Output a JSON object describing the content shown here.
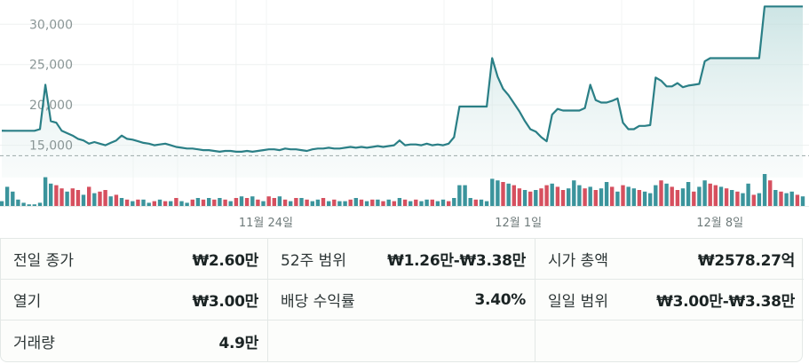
{
  "chart_data": {
    "type": "line",
    "y_ticks": [
      "30,000",
      "25,000",
      "20,000",
      "15,000"
    ],
    "y_tick_values": [
      30000,
      25000,
      20000,
      15000
    ],
    "x_ticks": [
      "11월 24일",
      "12월 1일",
      "12월 8일"
    ],
    "ylim": [
      11000,
      33000
    ],
    "line_color": "#2a7f86",
    "up_color": "#d6505f",
    "down_color": "#3b949c",
    "previous_close": 13700,
    "series": [
      {
        "values": [
          16800,
          16800,
          16800,
          16800,
          16800,
          16800,
          16800,
          17000,
          22500,
          18000,
          17800,
          16800,
          16500,
          16200,
          15800,
          15600,
          15200,
          15400,
          15200,
          15000,
          15300,
          15600,
          16200,
          15800,
          15700,
          15500,
          15300,
          15200,
          15000,
          15100,
          15200,
          15000,
          14800,
          14700,
          14600,
          14600,
          14500,
          14400,
          14400,
          14300,
          14200,
          14300,
          14300,
          14200,
          14200,
          14300,
          14200,
          14300,
          14400,
          14500,
          14500,
          14400,
          14600,
          14500,
          14500,
          14400,
          14300,
          14500,
          14600,
          14600,
          14700,
          14600,
          14600,
          14700,
          14800,
          14700,
          14800,
          14700,
          14800,
          14900,
          14800,
          14900,
          15000,
          15600,
          15000,
          15100,
          15100,
          15000,
          15200,
          15000,
          15100,
          15000,
          15200,
          16000,
          19800,
          19800,
          19800,
          19800,
          19800,
          19800,
          25800,
          23500,
          22000,
          21200,
          20200,
          19200,
          18000,
          17000,
          16700,
          16000,
          15500,
          18800,
          19500,
          19300,
          19300,
          19300,
          19300,
          19600,
          22500,
          20600,
          20300,
          20300,
          20500,
          20800,
          17800,
          17000,
          17000,
          17400,
          17400,
          17500,
          23400,
          23000,
          22300,
          22300,
          22700,
          22200,
          22400,
          22500,
          22600,
          25400,
          25800,
          25800,
          25800,
          25800,
          25800,
          25800,
          25800,
          25800,
          25800,
          25800,
          32200,
          32200,
          32200,
          32200,
          32200,
          32200,
          32200,
          32200
        ]
      }
    ],
    "volume": [
      3,
      12,
      9,
      4,
      2,
      1,
      1,
      2,
      18,
      14,
      13,
      11,
      9,
      11,
      10,
      7,
      12,
      8,
      9,
      10,
      6,
      7,
      5,
      4,
      3,
      4,
      4,
      2,
      3,
      4,
      3,
      3,
      5,
      3,
      2,
      4,
      5,
      4,
      5,
      4,
      5,
      4,
      3,
      5,
      6,
      5,
      6,
      4,
      3,
      6,
      5,
      6,
      4,
      3,
      5,
      5,
      4,
      3,
      4,
      5,
      3,
      4,
      3,
      3,
      4,
      5,
      4,
      3,
      4,
      4,
      3,
      4,
      3,
      5,
      4,
      3,
      4,
      3,
      4,
      4,
      3,
      4,
      3,
      5,
      13,
      13,
      5,
      4,
      4,
      3,
      17,
      16,
      15,
      14,
      13,
      11,
      10,
      9,
      10,
      11,
      13,
      14,
      12,
      10,
      11,
      16,
      13,
      11,
      12,
      10,
      11,
      15,
      12,
      9,
      13,
      12,
      11,
      10,
      9,
      8,
      13,
      16,
      14,
      12,
      10,
      11,
      15,
      9,
      12,
      16,
      14,
      13,
      12,
      11,
      10,
      9,
      8,
      14,
      7,
      8,
      20,
      16,
      10,
      9,
      8,
      9,
      7,
      6
    ],
    "volume_up": [
      0,
      0,
      0,
      0,
      0,
      0,
      0,
      0,
      0,
      0,
      1,
      1,
      0,
      1,
      1,
      0,
      1,
      0,
      1,
      1,
      0,
      1,
      0,
      1,
      0,
      1,
      0,
      0,
      1,
      0,
      1,
      0,
      1,
      0,
      0,
      1,
      0,
      1,
      0,
      1,
      0,
      1,
      0,
      1,
      0,
      1,
      0,
      1,
      0,
      1,
      1,
      0,
      1,
      0,
      1,
      0,
      1,
      0,
      0,
      1,
      0,
      1,
      0,
      0,
      1,
      0,
      1,
      0,
      1,
      0,
      1,
      0,
      1,
      0,
      1,
      0,
      1,
      0,
      0,
      1,
      0,
      0,
      1,
      0,
      0,
      0,
      0,
      1,
      0,
      0,
      0,
      0,
      1,
      0,
      1,
      1,
      0,
      1,
      0,
      1,
      1,
      0,
      1,
      1,
      0,
      0,
      0,
      1,
      0,
      1,
      0,
      0,
      1,
      0,
      1,
      0,
      0,
      1,
      0,
      0,
      0,
      1,
      0,
      1,
      1,
      0,
      0,
      1,
      0,
      0,
      1,
      1,
      0,
      1,
      0,
      1,
      0,
      0,
      1,
      0,
      0,
      1,
      0,
      1,
      0,
      0,
      1,
      0
    ]
  },
  "stats": [
    {
      "label": "전일 종가",
      "value": "₩2.60만"
    },
    {
      "label": "52주 범위",
      "value": "₩1.26만-₩3.38만"
    },
    {
      "label": "시가 총액",
      "value": "₩2578.27억"
    },
    {
      "label": "열기",
      "value": "₩3.00만"
    },
    {
      "label": "배당 수익률",
      "value": "3.40%"
    },
    {
      "label": "일일 범위",
      "value": "₩3.00만-₩3.38만"
    },
    {
      "label": "거래량",
      "value": "4.9만"
    },
    {
      "label": "",
      "value": ""
    },
    {
      "label": "",
      "value": ""
    }
  ]
}
